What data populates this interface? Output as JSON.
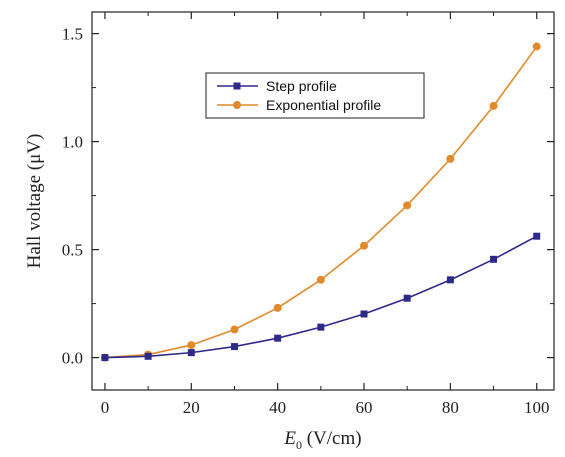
{
  "chart_data": {
    "type": "line",
    "x": [
      0,
      10,
      20,
      30,
      40,
      50,
      60,
      70,
      80,
      90,
      100
    ],
    "series": [
      {
        "name": "Step profile",
        "color": "#2d2a8a",
        "marker": "square",
        "values": [
          0.0,
          0.006,
          0.023,
          0.051,
          0.09,
          0.141,
          0.202,
          0.275,
          0.36,
          0.455,
          0.562
        ]
      },
      {
        "name": "Exponential profile",
        "color": "#e08a2c",
        "marker": "circle",
        "values": [
          0.0,
          0.014,
          0.058,
          0.13,
          0.23,
          0.36,
          0.518,
          0.705,
          0.92,
          1.165,
          1.44
        ]
      }
    ],
    "xlabel_symbol": "E",
    "xlabel_subscript": "0",
    "xlabel_unit": " (V/cm)",
    "ylabel": "Hall voltage (μV)",
    "xlim": [
      -3,
      104
    ],
    "ylim": [
      -0.15,
      1.6
    ],
    "xticks": [
      0,
      20,
      40,
      60,
      80,
      100
    ],
    "xtick_labels": [
      "0",
      "20",
      "40",
      "60",
      "80",
      "100"
    ],
    "yticks": [
      0.0,
      0.5,
      1.0,
      1.5
    ],
    "ytick_labels": [
      "0.0",
      "0.5",
      "1.0",
      "1.5"
    ],
    "legend_position": "upper-center",
    "grid": false
  }
}
